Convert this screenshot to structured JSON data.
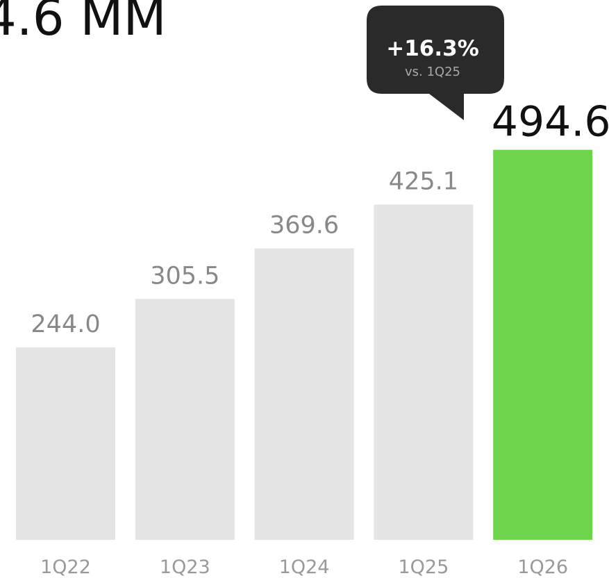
{
  "chart_data": {
    "type": "bar",
    "title": "4.6 MM",
    "categories": [
      "1Q22",
      "1Q23",
      "1Q24",
      "1Q25",
      "1Q26"
    ],
    "values": [
      244.0,
      305.5,
      369.6,
      425.1,
      494.6
    ],
    "value_labels": [
      "244.0",
      "305.5",
      "369.6",
      "425.1",
      "494.6"
    ],
    "colors": [
      "#e4e4e4",
      "#e4e4e4",
      "#e4e4e4",
      "#e4e4e4",
      "#6dd44b"
    ],
    "annotation": {
      "text": "+16.3%",
      "subtext": "vs. 1Q25"
    }
  }
}
